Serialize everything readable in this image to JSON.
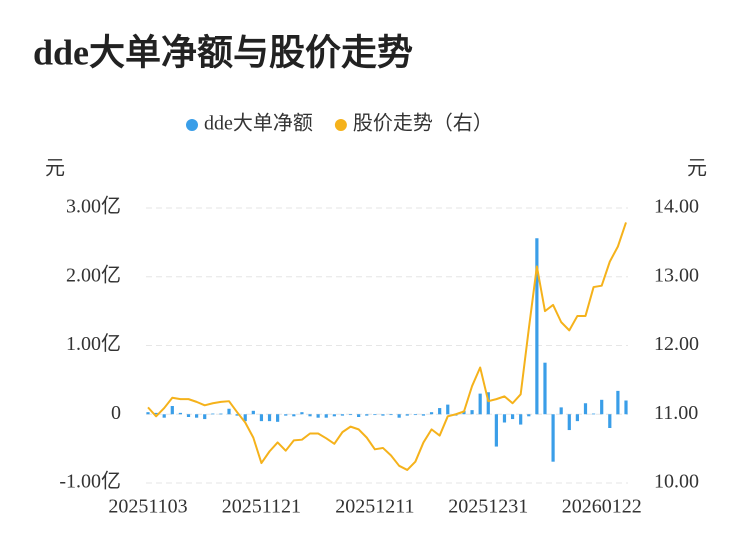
{
  "chart_data": {
    "type": "bar-line",
    "title": "dde大单净额与股价走势",
    "y_label": "元",
    "y2_label": "元",
    "categories": [
      "20251103",
      null,
      null,
      null,
      null,
      null,
      null,
      null,
      null,
      null,
      null,
      null,
      null,
      null,
      "20251121",
      null,
      null,
      null,
      null,
      null,
      null,
      null,
      null,
      null,
      null,
      null,
      null,
      null,
      "20251211",
      null,
      null,
      null,
      null,
      null,
      null,
      null,
      null,
      null,
      null,
      null,
      null,
      null,
      "20251231",
      null,
      null,
      null,
      null,
      null,
      null,
      null,
      null,
      null,
      null,
      null,
      null,
      null,
      "20260122",
      null,
      null,
      null
    ],
    "series": [
      {
        "name": "dde大单净额",
        "type": "bar",
        "color": "#3a9ee8",
        "values": [
          0.03,
          0.02,
          -0.05,
          0.12,
          0.02,
          -0.04,
          -0.05,
          -0.07,
          0.01,
          0.01,
          0.08,
          -0.02,
          -0.1,
          0.05,
          -0.1,
          -0.1,
          -0.11,
          -0.02,
          -0.03,
          0.03,
          -0.03,
          -0.05,
          -0.05,
          -0.03,
          -0.02,
          -0.01,
          -0.04,
          -0.02,
          -0.01,
          -0.02,
          -0.01,
          -0.05,
          -0.02,
          -0.01,
          -0.02,
          0.03,
          0.09,
          0.14,
          -0.02,
          0.05,
          0.06,
          0.3,
          0.32,
          -0.47,
          -0.12,
          -0.07,
          -0.15,
          -0.03,
          2.56,
          0.75,
          -0.69,
          0.1,
          -0.23,
          -0.1,
          0.16,
          0.01,
          0.21,
          -0.2,
          0.34,
          0.2
        ]
      },
      {
        "name": "股价走势（右）",
        "type": "line",
        "axis": "y2",
        "color": "#f5b21b",
        "values": [
          11.1,
          10.97,
          11.09,
          11.24,
          11.22,
          11.22,
          11.18,
          11.13,
          11.16,
          11.18,
          11.19,
          11.03,
          10.88,
          10.66,
          10.29,
          10.46,
          10.59,
          10.47,
          10.62,
          10.63,
          10.72,
          10.72,
          10.65,
          10.57,
          10.74,
          10.82,
          10.78,
          10.66,
          10.49,
          10.51,
          10.4,
          10.25,
          10.19,
          10.31,
          10.59,
          10.78,
          10.69,
          10.97,
          11.0,
          11.04,
          11.41,
          11.68,
          11.19,
          11.22,
          11.26,
          11.16,
          11.29,
          12.24,
          13.15,
          12.5,
          12.59,
          12.34,
          12.22,
          12.43,
          12.43,
          12.85,
          12.87,
          13.22,
          13.44,
          13.79
        ]
      }
    ],
    "ylim": [
      -1,
      3
    ],
    "yticks": [
      {
        "value": -1,
        "label": "-1.00亿"
      },
      0,
      {
        "value": 1,
        "label": "1.00亿"
      },
      {
        "value": 2,
        "label": "2.00亿"
      },
      {
        "value": 3,
        "label": "3.00亿"
      }
    ],
    "y2lim": [
      10,
      14
    ],
    "y2ticks": [
      {
        "value": 10,
        "label": "10.00"
      },
      {
        "value": 11,
        "label": "11.00"
      },
      {
        "value": 12,
        "label": "12.00"
      },
      {
        "value": 13,
        "label": "13.00"
      },
      {
        "value": 14,
        "label": "14.00"
      }
    ],
    "grid": true
  }
}
